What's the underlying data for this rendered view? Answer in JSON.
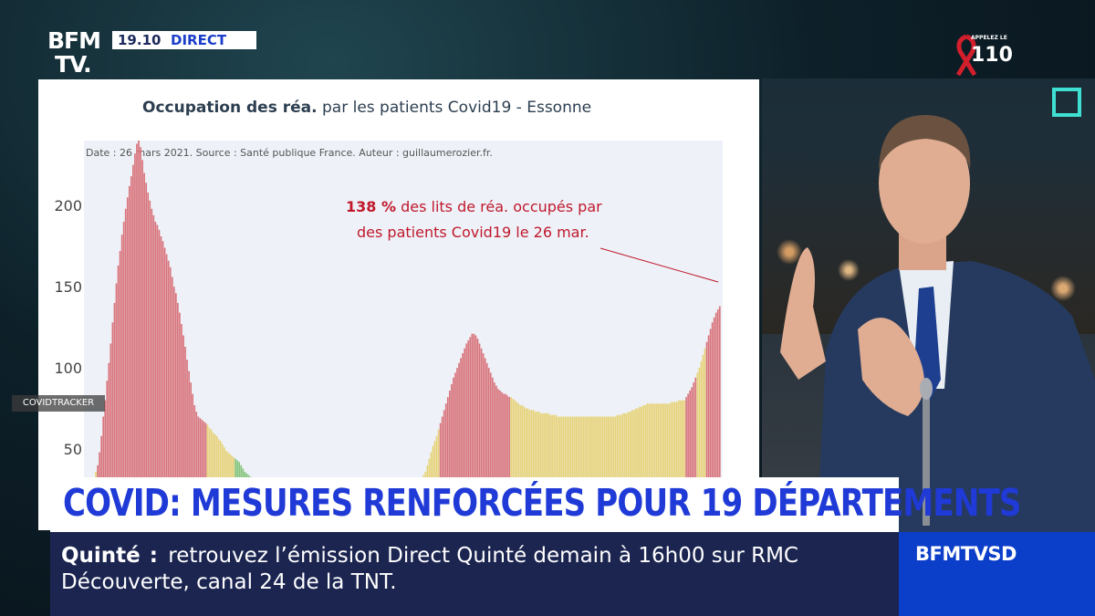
{
  "channel": {
    "logo_line1": "BFM",
    "logo_line2": "TV.",
    "time": "19.10",
    "live_label": "DIRECT",
    "ribbon_small": "APPELEZ LE",
    "ribbon_number": "110",
    "name": "BFMTVSD"
  },
  "watermark": "COVIDTRACKER",
  "headline": "COVID: MESURES RENFORCÉES POUR 19 DÉPARTEMENTS",
  "ticker": {
    "label": "Quinté",
    "separator": ":",
    "text": "retrouvez l’émission Direct Quinté demain à 16h00 sur RMC Découverte, canal 24 de la TNT."
  },
  "colors": {
    "red": "#d9747c",
    "yellow": "#e7d37a",
    "green": "#84c47a",
    "headline_blue": "#1f3ad6",
    "ticker_navy": "#1b2550",
    "annotation_red": "#c0182c"
  },
  "chart_data": {
    "type": "bar",
    "title_bold": "Occupation des réa.",
    "title_rest": " par les patients Covid19 - Essonne",
    "subtitle": "Date : 26 mars 2021. Source : Santé publique France. Auteur : guillaumerozier.fr.",
    "annotation_value": "138  %",
    "annotation_line1": " des lits de réa. occupés par",
    "annotation_line2": "des patients Covid19 le 26 mar.",
    "y_ticks": [
      200,
      150,
      100,
      50
    ],
    "ylim": [
      0,
      240
    ],
    "grid": false,
    "values": [
      3,
      8,
      14,
      22,
      30,
      36,
      40,
      48,
      58,
      70,
      80,
      92,
      103,
      115,
      128,
      140,
      152,
      163,
      172,
      182,
      190,
      198,
      205,
      212,
      218,
      225,
      232,
      238,
      240,
      236,
      228,
      220,
      214,
      208,
      203,
      198,
      194,
      190,
      188,
      185,
      181,
      178,
      174,
      170,
      166,
      162,
      156,
      150,
      146,
      140,
      134,
      127,
      120,
      113,
      105,
      98,
      91,
      84,
      77,
      73,
      70,
      69,
      68,
      67,
      66,
      65,
      63,
      62,
      60,
      59,
      58,
      56,
      55,
      53,
      51,
      49,
      48,
      47,
      46,
      45,
      44,
      43,
      42,
      40,
      38,
      36,
      35,
      34,
      33,
      31,
      30,
      28,
      27,
      26,
      25,
      24,
      23,
      22,
      21,
      20,
      19,
      18,
      17,
      17,
      16,
      16,
      15,
      15,
      14,
      14,
      14,
      13,
      13,
      13,
      13,
      13,
      12,
      12,
      12,
      12,
      12,
      12,
      12,
      11,
      11,
      11,
      11,
      11,
      11,
      11,
      11,
      11,
      11,
      11,
      11,
      11,
      11,
      11,
      11,
      12,
      12,
      12,
      12,
      12,
      12,
      12,
      12,
      13,
      13,
      13,
      13,
      13,
      13,
      14,
      14,
      14,
      15,
      15,
      15,
      15,
      15,
      16,
      16,
      16,
      17,
      17,
      18,
      18,
      18,
      19,
      19,
      20,
      21,
      22,
      23,
      24,
      25,
      26,
      28,
      30,
      32,
      34,
      36,
      40,
      44,
      48,
      52,
      55,
      58,
      62,
      66,
      70,
      74,
      78,
      82,
      86,
      90,
      94,
      97,
      100,
      103,
      106,
      109,
      112,
      115,
      117,
      119,
      121,
      121,
      120,
      118,
      115,
      112,
      109,
      106,
      103,
      100,
      97,
      94,
      91,
      89,
      87,
      86,
      85,
      84,
      84,
      83,
      82,
      82,
      81,
      80,
      79,
      78,
      77,
      77,
      76,
      75,
      75,
      74,
      74,
      74,
      73,
      73,
      73,
      72,
      72,
      72,
      72,
      72,
      71,
      71,
      71,
      71,
      70,
      70,
      70,
      70,
      70,
      70,
      70,
      70,
      70,
      70,
      70,
      70,
      70,
      70,
      70,
      70,
      70,
      70,
      70,
      70,
      70,
      70,
      70,
      70,
      70,
      70,
      70,
      70,
      70,
      70,
      70,
      70,
      71,
      71,
      71,
      72,
      72,
      72,
      73,
      73,
      74,
      74,
      75,
      75,
      76,
      76,
      77,
      77,
      78,
      78,
      78,
      78,
      78,
      78,
      78,
      78,
      78,
      78,
      78,
      78,
      78,
      79,
      79,
      79,
      79,
      80,
      80,
      80,
      80,
      82,
      84,
      86,
      88,
      91,
      94,
      97,
      100,
      104,
      108,
      112,
      116,
      120,
      124,
      128,
      131,
      134,
      136,
      138
    ],
    "color_segments": [
      {
        "until": 2,
        "color": "green"
      },
      {
        "until": 6,
        "color": "yellow"
      },
      {
        "until": 65,
        "color": "red"
      },
      {
        "until": 80,
        "color": "yellow"
      },
      {
        "until": 178,
        "color": "green"
      },
      {
        "until": 190,
        "color": "yellow"
      },
      {
        "until": 228,
        "color": "red"
      },
      {
        "until": 322,
        "color": "yellow"
      },
      {
        "until": 328,
        "color": "red"
      },
      {
        "until": 333,
        "color": "yellow"
      },
      {
        "until": 999,
        "color": "red"
      }
    ]
  }
}
